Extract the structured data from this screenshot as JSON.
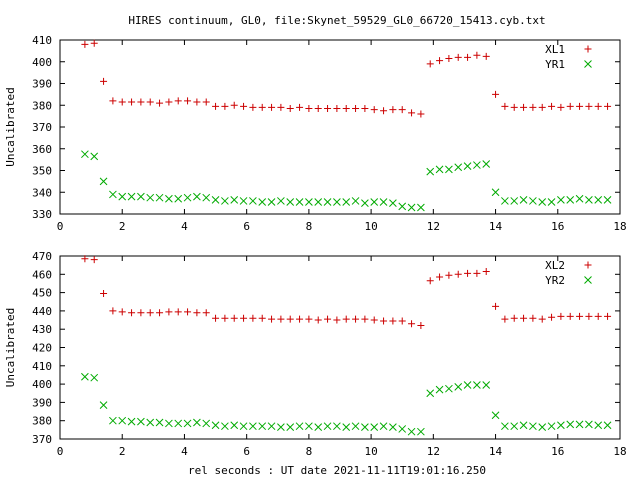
{
  "figure": {
    "title": "HIRES continuum, GL0, file:Skynet_59529_GL0_66720_15413.cyb.txt",
    "xlabel": "rel seconds : UT date 2021-11-11T19:01:16.250"
  },
  "chart_data": [
    {
      "type": "scatter",
      "ylabel": "Uncalibrated",
      "xlim": [
        0,
        18
      ],
      "ylim": [
        330,
        410
      ],
      "xticks": [
        0,
        2,
        4,
        6,
        8,
        10,
        12,
        14,
        16,
        18
      ],
      "yticks": [
        330,
        340,
        350,
        360,
        370,
        380,
        390,
        400,
        410
      ],
      "legend": "top-right",
      "grid": false,
      "x": [
        0.8,
        1.1,
        1.4,
        1.7,
        2.0,
        2.3,
        2.6,
        2.9,
        3.2,
        3.5,
        3.8,
        4.1,
        4.4,
        4.7,
        5.0,
        5.3,
        5.6,
        5.9,
        6.2,
        6.5,
        6.8,
        7.1,
        7.4,
        7.7,
        8.0,
        8.3,
        8.6,
        8.9,
        9.2,
        9.5,
        9.8,
        10.1,
        10.4,
        10.7,
        11.0,
        11.3,
        11.6,
        11.9,
        12.2,
        12.5,
        12.8,
        13.1,
        13.4,
        13.7,
        14.0,
        14.3,
        14.6,
        14.9,
        15.2,
        15.5,
        15.8,
        16.1,
        16.4,
        16.7,
        17.0,
        17.3,
        17.6
      ],
      "series": [
        {
          "name": "XL1",
          "marker": "plus",
          "color": "#cc0000",
          "values": [
            408,
            408.5,
            391,
            382,
            381.5,
            381.5,
            381.5,
            381.5,
            381,
            381.5,
            382,
            382,
            381.5,
            381.5,
            379.5,
            379.5,
            380,
            379.5,
            379,
            379,
            379,
            379,
            378.5,
            379,
            378.5,
            378.5,
            378.5,
            378.5,
            378.5,
            378.5,
            378.5,
            378,
            377.5,
            378,
            378,
            376.5,
            376,
            399,
            400.5,
            401.5,
            402,
            402,
            403,
            402.5,
            385,
            379.5,
            379,
            379,
            379,
            379,
            379.5,
            379,
            379.5,
            379.5,
            379.5,
            379.5,
            379.5
          ]
        },
        {
          "name": "YR1",
          "marker": "cross",
          "color": "#00aa00",
          "values": [
            357.5,
            356.5,
            345,
            339,
            338,
            338,
            338,
            337.5,
            337.5,
            337,
            337,
            337.5,
            338,
            337.5,
            336.5,
            336,
            336.5,
            336,
            336,
            335.5,
            335.5,
            336,
            335.5,
            335.5,
            335.5,
            335.5,
            335.5,
            335.5,
            335.5,
            336,
            335,
            335.5,
            335.5,
            335,
            333.5,
            333,
            333,
            349.5,
            350.5,
            350.5,
            351.5,
            352,
            352.5,
            353,
            340,
            336,
            336,
            336.5,
            336,
            335.5,
            335.5,
            336.5,
            336.5,
            337,
            336.5,
            336.5,
            336.5
          ]
        }
      ]
    },
    {
      "type": "scatter",
      "ylabel": "Uncalibrated",
      "xlim": [
        0,
        18
      ],
      "ylim": [
        370,
        470
      ],
      "xticks": [
        0,
        2,
        4,
        6,
        8,
        10,
        12,
        14,
        16,
        18
      ],
      "yticks": [
        370,
        380,
        390,
        400,
        410,
        420,
        430,
        440,
        450,
        460,
        470
      ],
      "legend": "top-right",
      "grid": false,
      "x": [
        0.8,
        1.1,
        1.4,
        1.7,
        2.0,
        2.3,
        2.6,
        2.9,
        3.2,
        3.5,
        3.8,
        4.1,
        4.4,
        4.7,
        5.0,
        5.3,
        5.6,
        5.9,
        6.2,
        6.5,
        6.8,
        7.1,
        7.4,
        7.7,
        8.0,
        8.3,
        8.6,
        8.9,
        9.2,
        9.5,
        9.8,
        10.1,
        10.4,
        10.7,
        11.0,
        11.3,
        11.6,
        11.9,
        12.2,
        12.5,
        12.8,
        13.1,
        13.4,
        13.7,
        14.0,
        14.3,
        14.6,
        14.9,
        15.2,
        15.5,
        15.8,
        16.1,
        16.4,
        16.7,
        17.0,
        17.3,
        17.6
      ],
      "series": [
        {
          "name": "XL2",
          "marker": "plus",
          "color": "#cc0000",
          "values": [
            468.5,
            468,
            449.5,
            440,
            439.5,
            439,
            439,
            439,
            439,
            439.5,
            439.5,
            439.5,
            439,
            439,
            436,
            436,
            436,
            436,
            436,
            436,
            435.5,
            435.5,
            435.5,
            435.5,
            435.5,
            435,
            435.5,
            435,
            435.5,
            435.5,
            435.5,
            435,
            434.5,
            434.5,
            434.5,
            433,
            432,
            456.5,
            458.5,
            459.5,
            460,
            460.5,
            460.5,
            461.5,
            442.5,
            435.5,
            436,
            436,
            436,
            435.5,
            436.5,
            437,
            437,
            437,
            437,
            437,
            437
          ]
        },
        {
          "name": "YR2",
          "marker": "cross",
          "color": "#00aa00",
          "values": [
            404,
            403.5,
            388.5,
            380,
            380,
            379.5,
            379.5,
            379,
            379,
            378.5,
            378.5,
            378.5,
            379,
            378.5,
            377.5,
            377,
            377.5,
            377,
            377,
            377,
            377,
            376.5,
            376.5,
            377,
            377,
            376.5,
            377,
            377,
            376.5,
            377,
            376.5,
            376.5,
            377,
            376.5,
            375.5,
            374,
            374,
            395,
            397,
            397.5,
            398.5,
            399.5,
            399.5,
            399.5,
            383,
            377,
            377,
            377.5,
            377,
            376.5,
            377,
            377.5,
            378,
            378,
            378,
            377.5,
            377.5
          ]
        }
      ]
    }
  ]
}
